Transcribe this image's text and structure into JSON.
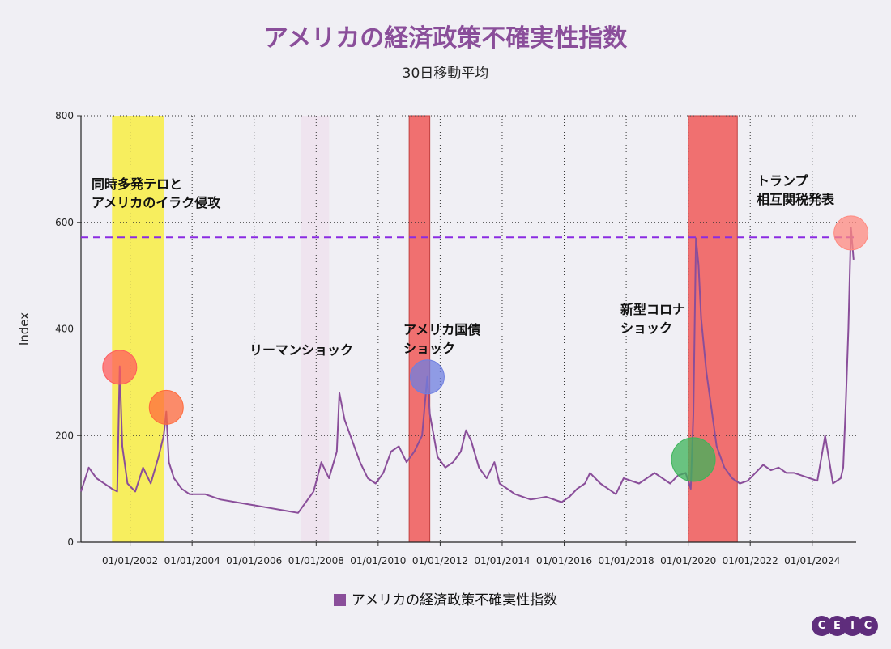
{
  "title": "アメリカの経済政策不確実性指数",
  "subtitle": "30日移動平均",
  "legend_label": "アメリカの経済政策不確実性指数",
  "logo_letters": [
    "C",
    "E",
    "I",
    "C"
  ],
  "colors": {
    "series": "#8a4e9a",
    "reference_line": "#8a2be2",
    "title": "#8a4e9a"
  },
  "annotations": [
    {
      "lines": [
        "同時多発テロと",
        "アメリカのイラク侵攻"
      ]
    },
    {
      "lines": [
        "リーマンショック"
      ]
    },
    {
      "lines": [
        "アメリカ国債",
        "ショック"
      ]
    },
    {
      "lines": [
        "新型コロナ",
        "ショック"
      ]
    },
    {
      "lines": [
        "トランプ",
        "相互関税発表"
      ]
    }
  ],
  "chart_data": {
    "type": "line",
    "ylabel": "Index",
    "ylim": [
      0,
      800
    ],
    "yticks": [
      0,
      200,
      400,
      600,
      800
    ],
    "xlim": [
      "2000-06",
      "2025-06"
    ],
    "xticks": [
      "2002-01-01",
      "2004-01-01",
      "2006-01-01",
      "2008-01-01",
      "2010-01-01",
      "2012-01-01",
      "2014-01-01",
      "2016-01-01",
      "2018-01-01",
      "2020-01-01",
      "2022-01-01",
      "2024-01-01"
    ],
    "xtick_labels": [
      "01/01/2002",
      "01/01/2004",
      "01/01/2006",
      "01/01/2008",
      "01/01/2010",
      "01/01/2012",
      "01/01/2014",
      "01/01/2016",
      "01/01/2018",
      "01/01/2020",
      "01/01/2022",
      "01/01/2024"
    ],
    "grid": "dotted",
    "legend_position": "bottom",
    "reference_line": {
      "y": 572,
      "style": "dashed"
    },
    "shaded_periods": [
      {
        "start": "2001-06",
        "end": "2003-02",
        "color": "#f7ee5e"
      },
      {
        "start": "2007-07",
        "end": "2008-06",
        "color": "#efe4ef"
      },
      {
        "start": "2011-01",
        "end": "2011-09",
        "color": "#f07070"
      },
      {
        "start": "2020-01",
        "end": "2021-08",
        "color": "#f07070"
      }
    ],
    "highlight_markers": [
      {
        "x": "2001-09",
        "y": 328,
        "color": "#ff5c5c"
      },
      {
        "x": "2003-03",
        "y": 253,
        "color": "#ff6a3c"
      },
      {
        "x": "2011-08",
        "y": 310,
        "color": "#6f7fe0"
      },
      {
        "x": "2020-03",
        "y": 155,
        "color": "#3cb45a"
      },
      {
        "x": "2025-04",
        "y": 580,
        "color": "#ff8a80"
      }
    ],
    "series": [
      {
        "name": "アメリカの経済政策不確実性指数",
        "x": [
          "2000-06",
          "2000-09",
          "2000-12",
          "2001-03",
          "2001-06",
          "2001-08",
          "2001-09",
          "2001-10",
          "2001-12",
          "2002-03",
          "2002-06",
          "2002-09",
          "2002-12",
          "2003-02",
          "2003-03",
          "2003-04",
          "2003-06",
          "2003-09",
          "2003-12",
          "2004-06",
          "2004-12",
          "2005-06",
          "2005-12",
          "2006-06",
          "2006-12",
          "2007-06",
          "2007-12",
          "2008-03",
          "2008-06",
          "2008-09",
          "2008-10",
          "2008-12",
          "2009-03",
          "2009-06",
          "2009-09",
          "2009-12",
          "2010-03",
          "2010-06",
          "2010-09",
          "2010-12",
          "2011-03",
          "2011-06",
          "2011-08",
          "2011-09",
          "2011-12",
          "2012-03",
          "2012-06",
          "2012-09",
          "2012-11",
          "2013-01",
          "2013-04",
          "2013-07",
          "2013-10",
          "2013-12",
          "2014-06",
          "2014-12",
          "2015-06",
          "2015-12",
          "2016-03",
          "2016-06",
          "2016-09",
          "2016-11",
          "2017-03",
          "2017-06",
          "2017-09",
          "2017-12",
          "2018-06",
          "2018-12",
          "2019-03",
          "2019-06",
          "2019-09",
          "2019-12",
          "2020-02",
          "2020-03",
          "2020-04",
          "2020-05",
          "2020-06",
          "2020-08",
          "2020-10",
          "2020-12",
          "2021-03",
          "2021-06",
          "2021-09",
          "2021-12",
          "2022-03",
          "2022-06",
          "2022-09",
          "2022-12",
          "2023-03",
          "2023-06",
          "2023-09",
          "2023-12",
          "2024-03",
          "2024-06",
          "2024-09",
          "2024-12",
          "2025-01",
          "2025-02",
          "2025-03",
          "2025-04",
          "2025-05"
        ],
        "values": [
          95,
          140,
          120,
          110,
          100,
          95,
          330,
          180,
          110,
          95,
          140,
          110,
          160,
          200,
          245,
          150,
          120,
          100,
          90,
          90,
          80,
          75,
          70,
          65,
          60,
          55,
          95,
          150,
          120,
          170,
          280,
          230,
          190,
          150,
          120,
          110,
          130,
          170,
          180,
          150,
          170,
          200,
          310,
          240,
          160,
          140,
          150,
          170,
          210,
          190,
          140,
          120,
          150,
          110,
          90,
          80,
          85,
          75,
          85,
          100,
          110,
          130,
          110,
          100,
          90,
          120,
          110,
          130,
          120,
          110,
          125,
          130,
          100,
          240,
          570,
          520,
          420,
          320,
          250,
          180,
          140,
          120,
          110,
          115,
          130,
          145,
          135,
          140,
          130,
          130,
          125,
          120,
          115,
          200,
          110,
          120,
          140,
          260,
          400,
          590,
          530
        ]
      }
    ]
  }
}
